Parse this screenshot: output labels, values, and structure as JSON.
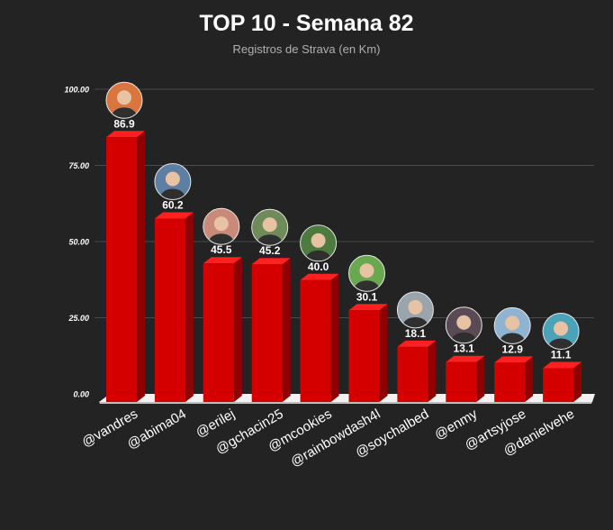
{
  "chart_data": {
    "type": "bar",
    "title": "TOP 10 - Semana 82",
    "subtitle": "Registros de Strava (en Km)",
    "xlabel": "",
    "ylabel": "",
    "ylim": [
      0,
      100
    ],
    "yticks": [
      "0.00",
      "25.00",
      "50.00",
      "75.00",
      "100.00"
    ],
    "grid": true,
    "categories": [
      "@vandres",
      "@abima04",
      "@erilej",
      "@gchacin25",
      "@mcookies",
      "@rainbowdash4l",
      "@soychalbed",
      "@enmy",
      "@artsyjose",
      "@danielvehe"
    ],
    "values": [
      86.9,
      60.2,
      45.5,
      45.2,
      40.0,
      30.1,
      18.1,
      13.1,
      12.9,
      11.1
    ],
    "value_labels": [
      "86.9",
      "60.2",
      "45.5",
      "45.2",
      "40.0",
      "30.1",
      "18.1",
      "13.1",
      "12.9",
      "11.1"
    ]
  },
  "colors": {
    "background": "#232323",
    "bar_front": "#d40000",
    "bar_side": "#8f0000",
    "bar_top": "#ff2020",
    "grid": "#4a4a4a",
    "floor": "#f2f2f2",
    "text": "#ffffff",
    "subtitle": "#b0b0b0"
  },
  "avatar_colors": [
    "#d9763f",
    "#5d7fa3",
    "#c98a7a",
    "#6f8b5a",
    "#4d7a3e",
    "#6aa84f",
    "#9aa4ad",
    "#5a4a55",
    "#8fb3d1",
    "#4aa3b8"
  ]
}
